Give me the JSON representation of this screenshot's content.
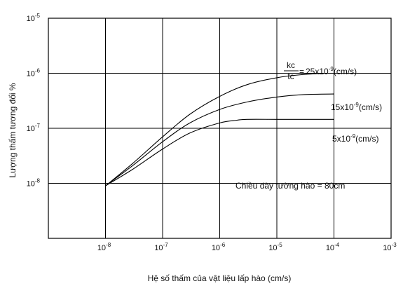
{
  "chart_data": {
    "type": "line",
    "xlabel": "Hệ số thấm của vật liệu lấp hào (cm/s)",
    "ylabel": "Lượng thấm tương đối %",
    "xscale": "log",
    "yscale": "log",
    "xlim": [
      1e-09,
      0.001
    ],
    "ylim": [
      1e-09,
      1e-05
    ],
    "grid": true,
    "x_ticks": [
      {
        "value": 1e-08,
        "base": "10",
        "exp": "-8"
      },
      {
        "value": 1e-07,
        "base": "10",
        "exp": "-7"
      },
      {
        "value": 1e-06,
        "base": "10",
        "exp": "-6"
      },
      {
        "value": 1e-05,
        "base": "10",
        "exp": "-5"
      },
      {
        "value": 0.0001,
        "base": "10",
        "exp": "-4"
      },
      {
        "value": 0.001,
        "base": "10",
        "exp": "-3"
      }
    ],
    "y_ticks": [
      {
        "value": 1e-08,
        "base": "10",
        "exp": "-8"
      },
      {
        "value": 1e-07,
        "base": "10",
        "exp": "-7"
      },
      {
        "value": 1e-06,
        "base": "10",
        "exp": "-6"
      },
      {
        "value": 1e-05,
        "base": "10",
        "exp": "-5"
      }
    ],
    "series": [
      {
        "label_value": "25x10",
        "label_exp": "-9",
        "label_unit": "(cm/s)",
        "label_prefix_num": "kc",
        "label_prefix_den": "tc",
        "label_prefix_eq": "=",
        "x": [
          1e-08,
          3e-08,
          1e-07,
          3e-07,
          1e-06,
          3e-06,
          1e-05,
          3e-05,
          7e-05
        ],
        "y": [
          9e-09,
          2.3e-08,
          7e-08,
          1.8e-07,
          3.8e-07,
          6.2e-07,
          8.3e-07,
          9.5e-07,
          1e-06
        ]
      },
      {
        "label_value": "15x10",
        "label_exp": "-9",
        "label_unit": "(cm/s)",
        "x": [
          1e-08,
          3e-08,
          1e-07,
          3e-07,
          1e-06,
          3e-06,
          1e-05,
          3e-05,
          0.0001
        ],
        "y": [
          9e-09,
          2.1e-08,
          5.7e-08,
          1.25e-07,
          2.2e-07,
          3e-07,
          3.7e-07,
          4.1e-07,
          4.2e-07
        ]
      },
      {
        "label_value": "5x10",
        "label_exp": "-9",
        "label_unit": "(cm/s)",
        "x": [
          1e-08,
          3e-08,
          1e-07,
          3e-07,
          1e-06,
          2e-06,
          3e-06,
          1e-05,
          3e-05,
          0.0001
        ],
        "y": [
          9e-09,
          1.8e-08,
          4.2e-08,
          8.2e-08,
          1.25e-07,
          1.4e-07,
          1.45e-07,
          1.45e-07,
          1.45e-07,
          1.45e-07
        ]
      }
    ],
    "annotations": [
      {
        "text": "Chiều dày tường hào = 80cm"
      }
    ]
  }
}
